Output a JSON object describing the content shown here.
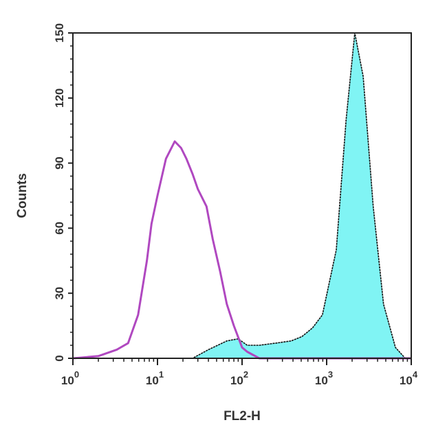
{
  "chart_data": {
    "type": "area",
    "xlabel": "FL2-H",
    "ylabel": "Counts",
    "x_scale": "log",
    "xlim": [
      1,
      10000
    ],
    "ylim": [
      0,
      150
    ],
    "grid": false,
    "x_ticks": [
      {
        "value": 1,
        "base": "10",
        "exp": "0"
      },
      {
        "value": 10,
        "base": "10",
        "exp": "1"
      },
      {
        "value": 100,
        "base": "10",
        "exp": "2"
      },
      {
        "value": 1000,
        "base": "10",
        "exp": "3"
      },
      {
        "value": 10000,
        "base": "10",
        "exp": "4"
      }
    ],
    "y_ticks": [
      "0",
      "30",
      "60",
      "90",
      "120",
      "150"
    ],
    "series": [
      {
        "style": "filled",
        "fill": "#80f4f4",
        "stroke": "#111111",
        "x": [
          1,
          20,
          26,
          40,
          66,
          90,
          115,
          160,
          250,
          380,
          510,
          680,
          890,
          1300,
          1700,
          2150,
          2700,
          3550,
          4700,
          6500,
          8500,
          10000
        ],
        "y": [
          0,
          0,
          0,
          4,
          8,
          9,
          6,
          6,
          7,
          8,
          10,
          14,
          20,
          50,
          110,
          150,
          130,
          70,
          25,
          5,
          0,
          0
        ]
      },
      {
        "style": "line",
        "stroke": "#b048c0",
        "x": [
          1,
          2,
          3.3,
          4.5,
          5.9,
          7.5,
          8.5,
          10,
          12.6,
          16,
          19,
          22,
          26,
          30,
          38,
          45,
          55,
          66,
          80,
          100,
          115,
          160,
          250,
          10000
        ],
        "y": [
          0,
          1,
          4,
          7,
          20,
          45,
          62,
          75,
          92,
          100,
          97,
          92,
          85,
          78,
          70,
          55,
          40,
          25,
          15,
          5,
          3,
          0,
          0,
          0
        ]
      }
    ]
  }
}
